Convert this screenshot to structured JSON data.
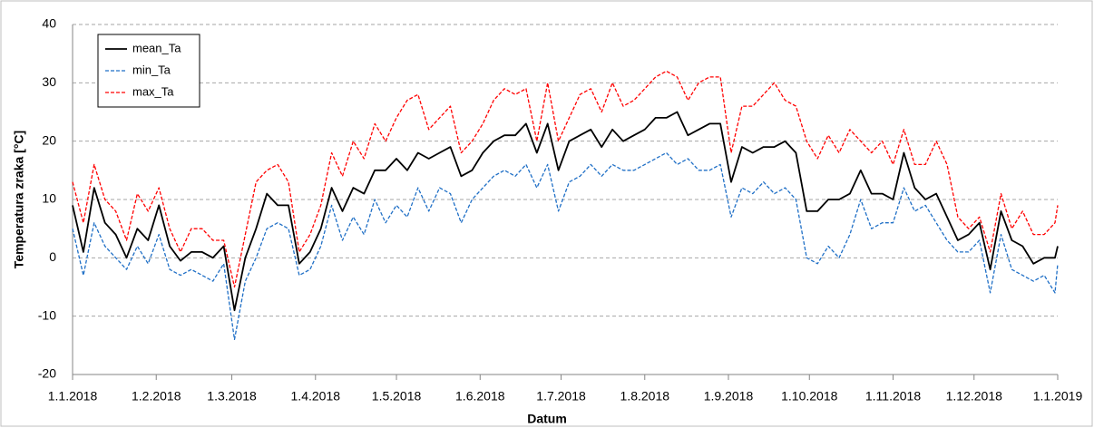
{
  "chart_data": {
    "type": "line",
    "xlabel": "Datum",
    "ylabel": "Temperatura zraka [°C]",
    "x": [
      "1.1.2018",
      "5.1.2018",
      "9.1.2018",
      "13.1.2018",
      "17.1.2018",
      "21.1.2018",
      "25.1.2018",
      "29.1.2018",
      "2.2.2018",
      "6.2.2018",
      "10.2.2018",
      "14.2.2018",
      "18.2.2018",
      "22.2.2018",
      "26.2.2018",
      "2.3.2018",
      "6.3.2018",
      "10.3.2018",
      "14.3.2018",
      "18.3.2018",
      "22.3.2018",
      "26.3.2018",
      "30.3.2018",
      "3.4.2018",
      "7.4.2018",
      "11.4.2018",
      "15.4.2018",
      "19.4.2018",
      "23.4.2018",
      "27.4.2018",
      "1.5.2018",
      "5.5.2018",
      "9.5.2018",
      "13.5.2018",
      "17.5.2018",
      "21.5.2018",
      "25.5.2018",
      "29.5.2018",
      "2.6.2018",
      "6.6.2018",
      "10.6.2018",
      "14.6.2018",
      "18.6.2018",
      "22.6.2018",
      "26.6.2018",
      "30.6.2018",
      "4.7.2018",
      "8.7.2018",
      "12.7.2018",
      "16.7.2018",
      "20.7.2018",
      "24.7.2018",
      "28.7.2018",
      "1.8.2018",
      "5.8.2018",
      "9.8.2018",
      "13.8.2018",
      "17.8.2018",
      "21.8.2018",
      "25.8.2018",
      "29.8.2018",
      "2.9.2018",
      "6.9.2018",
      "10.9.2018",
      "14.9.2018",
      "18.9.2018",
      "22.9.2018",
      "26.9.2018",
      "30.9.2018",
      "4.10.2018",
      "8.10.2018",
      "12.10.2018",
      "16.10.2018",
      "20.10.2018",
      "24.10.2018",
      "28.10.2018",
      "1.11.2018",
      "5.11.2018",
      "9.11.2018",
      "13.11.2018",
      "17.11.2018",
      "21.11.2018",
      "25.11.2018",
      "29.11.2018",
      "3.12.2018",
      "7.12.2018",
      "11.12.2018",
      "15.12.2018",
      "19.12.2018",
      "23.12.2018",
      "27.12.2018",
      "31.12.2018",
      "1.1.2019"
    ],
    "series": [
      {
        "name": "mean_Ta",
        "color": "#000000",
        "linestyle": "solid",
        "values": [
          9,
          1,
          12,
          6,
          4,
          0,
          5,
          3,
          9,
          2,
          -0.5,
          1,
          1,
          0,
          2,
          -9,
          0,
          5,
          11,
          9,
          9,
          -1,
          1,
          5,
          12,
          8,
          12,
          11,
          15,
          15,
          17,
          15,
          18,
          17,
          18,
          19,
          14,
          15,
          18,
          20,
          21,
          21,
          23,
          18,
          23,
          15,
          20,
          21,
          22,
          19,
          22,
          20,
          21,
          22,
          24,
          24,
          25,
          21,
          22,
          23,
          23,
          13,
          19,
          18,
          19,
          19,
          20,
          18,
          8,
          8,
          10,
          10,
          11,
          15,
          11,
          11,
          10,
          18,
          12,
          10,
          11,
          7,
          3,
          4,
          6,
          -2,
          8,
          3,
          2,
          -1,
          0,
          0,
          2
        ]
      },
      {
        "name": "min_Ta",
        "color": "#1f6fc6",
        "linestyle": "dashed",
        "values": [
          5,
          -3,
          6,
          2,
          0,
          -2,
          2,
          -1,
          4,
          -2,
          -3,
          -2,
          -3,
          -4,
          -1,
          -14,
          -4,
          0,
          5,
          6,
          5,
          -3,
          -2,
          2,
          9,
          3,
          7,
          4,
          10,
          6,
          9,
          7,
          12,
          8,
          12,
          11,
          6,
          10,
          12,
          14,
          15,
          14,
          16,
          12,
          16,
          8,
          13,
          14,
          16,
          14,
          16,
          15,
          15,
          16,
          17,
          18,
          16,
          17,
          15,
          15,
          16,
          7,
          12,
          11,
          13,
          11,
          12,
          10,
          0,
          -1,
          2,
          0,
          4,
          10,
          5,
          6,
          6,
          12,
          8,
          9,
          6,
          3,
          1,
          1,
          3,
          -6,
          4,
          -2,
          -3,
          -4,
          -3,
          -6,
          -1
        ]
      },
      {
        "name": "max_Ta",
        "color": "#ff0000",
        "linestyle": "dashed",
        "values": [
          13,
          6,
          16,
          10,
          8,
          3,
          11,
          8,
          12,
          5,
          1,
          5,
          5,
          3,
          3,
          -5,
          4,
          13,
          15,
          16,
          13,
          1,
          4,
          9,
          18,
          14,
          20,
          17,
          23,
          20,
          24,
          27,
          28,
          22,
          24,
          26,
          18,
          20,
          23,
          27,
          29,
          28,
          29,
          20,
          30,
          20,
          24,
          28,
          29,
          25,
          30,
          26,
          27,
          29,
          31,
          32,
          31,
          27,
          30,
          31,
          31,
          18,
          26,
          26,
          28,
          30,
          27,
          26,
          20,
          17,
          21,
          18,
          22,
          20,
          18,
          20,
          16,
          22,
          16,
          16,
          20,
          16,
          7,
          5,
          7,
          1,
          11,
          5,
          8,
          4,
          4,
          6,
          9
        ]
      }
    ],
    "xlim": [
      "1.1.2018",
      "1.1.2019"
    ],
    "xticks": [
      "1.1.2018",
      "1.2.2018",
      "1.3.2018",
      "1.4.2018",
      "1.5.2018",
      "1.6.2018",
      "1.7.2018",
      "1.8.2018",
      "1.9.2018",
      "1.10.2018",
      "1.11.2018",
      "1.12.2018",
      "1.1.2019"
    ],
    "ylim": [
      -20,
      40
    ],
    "yticks": [
      -20,
      -10,
      0,
      10,
      20,
      30,
      40
    ],
    "grid": true,
    "legend": "upper left"
  }
}
